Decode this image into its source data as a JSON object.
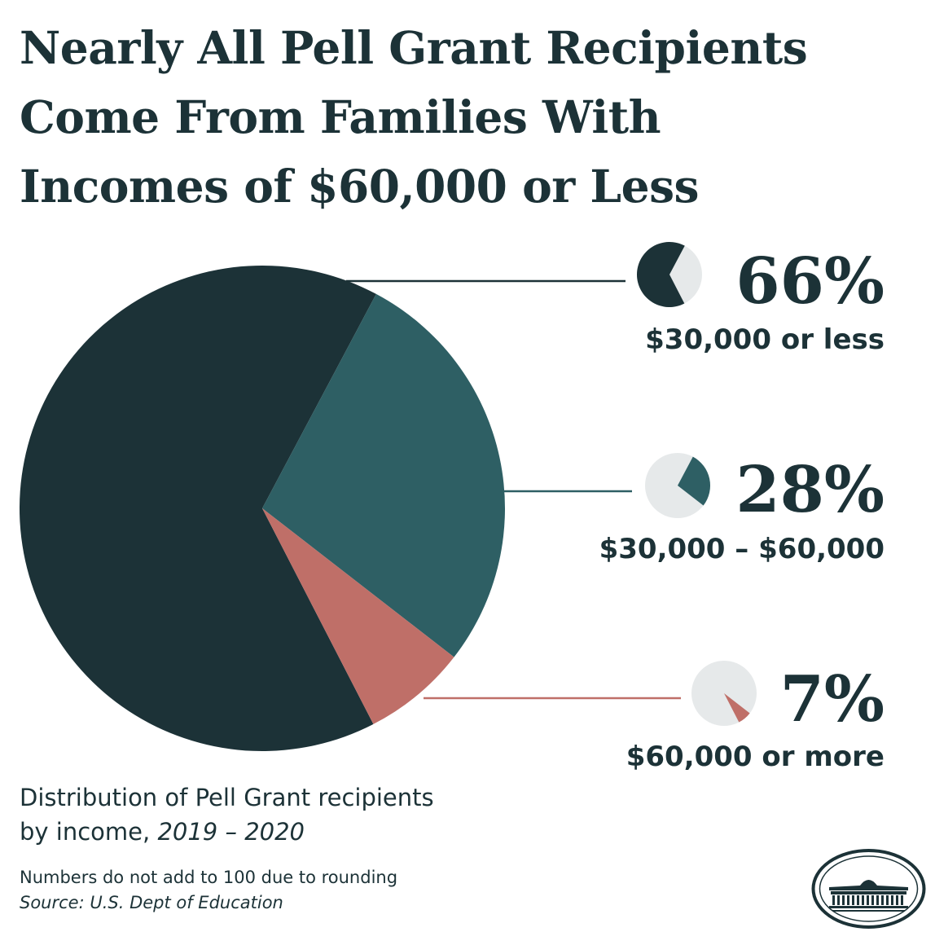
{
  "title": "Nearly All Pell Grant Recipients\nCome From Families With\nIncomes of $60,000 or Less",
  "chart_data": {
    "type": "pie",
    "title": "Nearly All Pell Grant Recipients Come From Families With Incomes of $60,000 or Less",
    "categories": [
      "$30,000 or less",
      "$30,000 – $60,000",
      "$60,000 or more"
    ],
    "values": [
      66,
      28,
      7
    ],
    "labels": [
      "66%",
      "28%",
      "7%"
    ],
    "colors": [
      "#1c3237",
      "#2e5f64",
      "#bf6f68"
    ],
    "empty_color": "#e6e9ea",
    "legend_position": "right"
  },
  "caption": {
    "line1": "Distribution of Pell Grant recipients",
    "line2_prefix": "by income, ",
    "line2_years": "2019 – 2020"
  },
  "note": "Numbers do not add to 100 due to rounding",
  "source": "Source: U.S. Dept of Education",
  "logo": "white-house-seal"
}
